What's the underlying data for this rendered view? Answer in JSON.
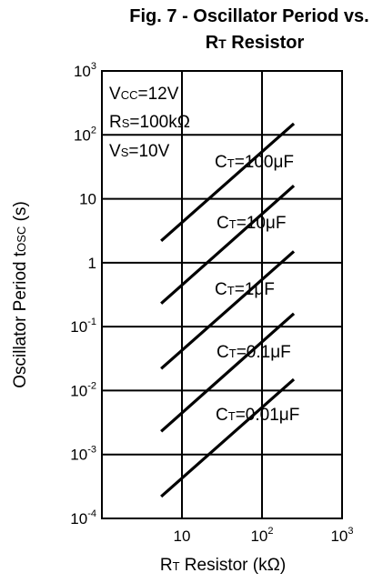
{
  "chart_data": {
    "type": "line",
    "title": {
      "line1": "Fig. 7 - Oscillator Period vs.",
      "line2_main": "R",
      "line2_sub": "T",
      "line2_rest": " Resistor"
    },
    "xlabel": {
      "main": "R",
      "sub": "T",
      "rest": " Resistor (k",
      "unit": "Ω",
      "end": ")"
    },
    "ylabel": {
      "main": "Oscillator Period t",
      "sub": "OSC",
      "rest": " (s)"
    },
    "xscale": "log",
    "yscale": "log",
    "xlim": [
      1,
      1000
    ],
    "ylim": [
      0.0001,
      1000
    ],
    "grid": true,
    "x_ticks": [
      {
        "value": 10,
        "base": "10",
        "exp": ""
      },
      {
        "value": 100,
        "base": "10",
        "exp": "2"
      },
      {
        "value": 1000,
        "base": "10",
        "exp": "3"
      }
    ],
    "y_ticks": [
      {
        "value": 1000,
        "base": "10",
        "exp": "3"
      },
      {
        "value": 100,
        "base": "10",
        "exp": "2"
      },
      {
        "value": 10,
        "base": "10",
        "exp": ""
      },
      {
        "value": 1,
        "base": "1",
        "exp": ""
      },
      {
        "value": 0.1,
        "base": "10",
        "exp": "-1"
      },
      {
        "value": 0.01,
        "base": "10",
        "exp": "-2"
      },
      {
        "value": 0.001,
        "base": "10",
        "exp": "-3"
      },
      {
        "value": 0.0001,
        "base": "10",
        "exp": "-4"
      }
    ],
    "conditions": [
      {
        "main": "V",
        "sub": "CC",
        "rest": "=12V"
      },
      {
        "main": "R",
        "sub": "S",
        "rest": "=100k",
        "unit": "Ω"
      },
      {
        "main": "V",
        "sub": "S",
        "rest": "=10V"
      }
    ],
    "series": [
      {
        "label_main": "C",
        "label_sub": "T",
        "label_rest": "=100",
        "label_unit": "μF",
        "x": [
          5.5,
          250
        ],
        "y": [
          2.2,
          150
        ]
      },
      {
        "label_main": "C",
        "label_sub": "T",
        "label_rest": "=10",
        "label_unit": "μF",
        "x": [
          5.5,
          250
        ],
        "y": [
          0.23,
          16
        ]
      },
      {
        "label_main": "C",
        "label_sub": "T",
        "label_rest": "=1",
        "label_unit": "μF",
        "x": [
          5.5,
          250
        ],
        "y": [
          0.022,
          1.5
        ]
      },
      {
        "label_main": "C",
        "label_sub": "T",
        "label_rest": "=0.1",
        "label_unit": "μF",
        "x": [
          5.5,
          250
        ],
        "y": [
          0.0023,
          0.16
        ]
      },
      {
        "label_main": "C",
        "label_sub": "T",
        "label_rest": "=0.01",
        "label_unit": "μF",
        "x": [
          5.5,
          250
        ],
        "y": [
          0.00022,
          0.015
        ]
      }
    ]
  }
}
